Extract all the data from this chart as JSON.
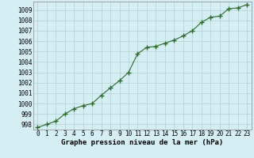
{
  "x": [
    0,
    1,
    2,
    3,
    4,
    5,
    6,
    7,
    8,
    9,
    10,
    11,
    12,
    13,
    14,
    15,
    16,
    17,
    18,
    19,
    20,
    21,
    22,
    23
  ],
  "y": [
    997.7,
    998.0,
    998.3,
    999.0,
    999.5,
    999.8,
    1000.0,
    1000.8,
    1001.5,
    1002.2,
    1003.0,
    1004.8,
    1005.4,
    1005.5,
    1005.8,
    1006.1,
    1006.5,
    1007.0,
    1007.8,
    1008.3,
    1008.4,
    1009.1,
    1009.2,
    1009.5
  ],
  "ylim": [
    997.5,
    1009.8
  ],
  "xlim": [
    -0.5,
    23.5
  ],
  "yticks": [
    998,
    999,
    1000,
    1001,
    1002,
    1003,
    1004,
    1005,
    1006,
    1007,
    1008,
    1009
  ],
  "xticks": [
    0,
    1,
    2,
    3,
    4,
    5,
    6,
    7,
    8,
    9,
    10,
    11,
    12,
    13,
    14,
    15,
    16,
    17,
    18,
    19,
    20,
    21,
    22,
    23
  ],
  "line_color": "#2d6a2d",
  "marker": "+",
  "marker_size": 4.0,
  "bg_color": "#d4eef4",
  "grid_color": "#b0d0d0",
  "xlabel": "Graphe pression niveau de la mer (hPa)",
  "xlabel_fontsize": 6.5,
  "tick_fontsize": 5.5,
  "line_width": 0.8,
  "spine_color": "#888888"
}
